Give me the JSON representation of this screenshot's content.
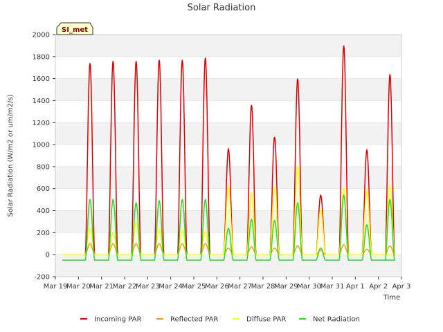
{
  "chart_data": {
    "type": "line",
    "title": "Solar Radiation",
    "xlabel": "Time",
    "ylabel": "Solar Radiation (W/m2 or um/m2/s)",
    "ylim": [
      -200,
      2000
    ],
    "xlim": [
      0,
      15
    ],
    "yticks": [
      -200,
      0,
      200,
      400,
      600,
      800,
      1000,
      1200,
      1400,
      1600,
      1800,
      2000
    ],
    "xticks": [
      {
        "day": 0,
        "label": "Mar 19"
      },
      {
        "day": 1,
        "label": "Mar 20"
      },
      {
        "day": 2,
        "label": "Mar 21"
      },
      {
        "day": 3,
        "label": "Mar 22"
      },
      {
        "day": 4,
        "label": "Mar 23"
      },
      {
        "day": 5,
        "label": "Mar 24"
      },
      {
        "day": 6,
        "label": "Mar 25"
      },
      {
        "day": 7,
        "label": "Mar 26"
      },
      {
        "day": 8,
        "label": "Mar 27"
      },
      {
        "day": 9,
        "label": "Mar 28"
      },
      {
        "day": 10,
        "label": "Mar 29"
      },
      {
        "day": 11,
        "label": "Mar 30"
      },
      {
        "day": 12,
        "label": "Mar 31"
      },
      {
        "day": 13,
        "label": "Apr 1"
      },
      {
        "day": 14,
        "label": "Apr 2"
      },
      {
        "day": 15,
        "label": "Apr 3"
      }
    ],
    "grid": "horizontal bands",
    "legend_position": "bottom",
    "site_badge": "SI_met",
    "day_start": 0.3,
    "day_end": 0.7,
    "series": [
      {
        "name": "Incoming PAR",
        "color": "#dd0000",
        "daily_peaks": [
          1740,
          1760,
          1760,
          1770,
          1770,
          1790,
          960,
          1360,
          1070,
          1600,
          540,
          1900,
          950,
          1640
        ]
      },
      {
        "name": "Reflected PAR",
        "color": "#ff9900",
        "daily_peaks": [
          100,
          100,
          100,
          100,
          100,
          100,
          60,
          70,
          60,
          80,
          40,
          90,
          50,
          80
        ]
      },
      {
        "name": "Diffuse PAR",
        "color": "#ffff00",
        "daily_peaks": [
          240,
          200,
          290,
          230,
          220,
          210,
          620,
          560,
          610,
          800,
          410,
          600,
          590,
          630
        ]
      },
      {
        "name": "Net Radiation",
        "color": "#22dd22",
        "daily_peaks": [
          500,
          500,
          470,
          490,
          500,
          500,
          240,
          320,
          310,
          470,
          60,
          540,
          270,
          500
        ],
        "night_value": -50
      }
    ]
  }
}
